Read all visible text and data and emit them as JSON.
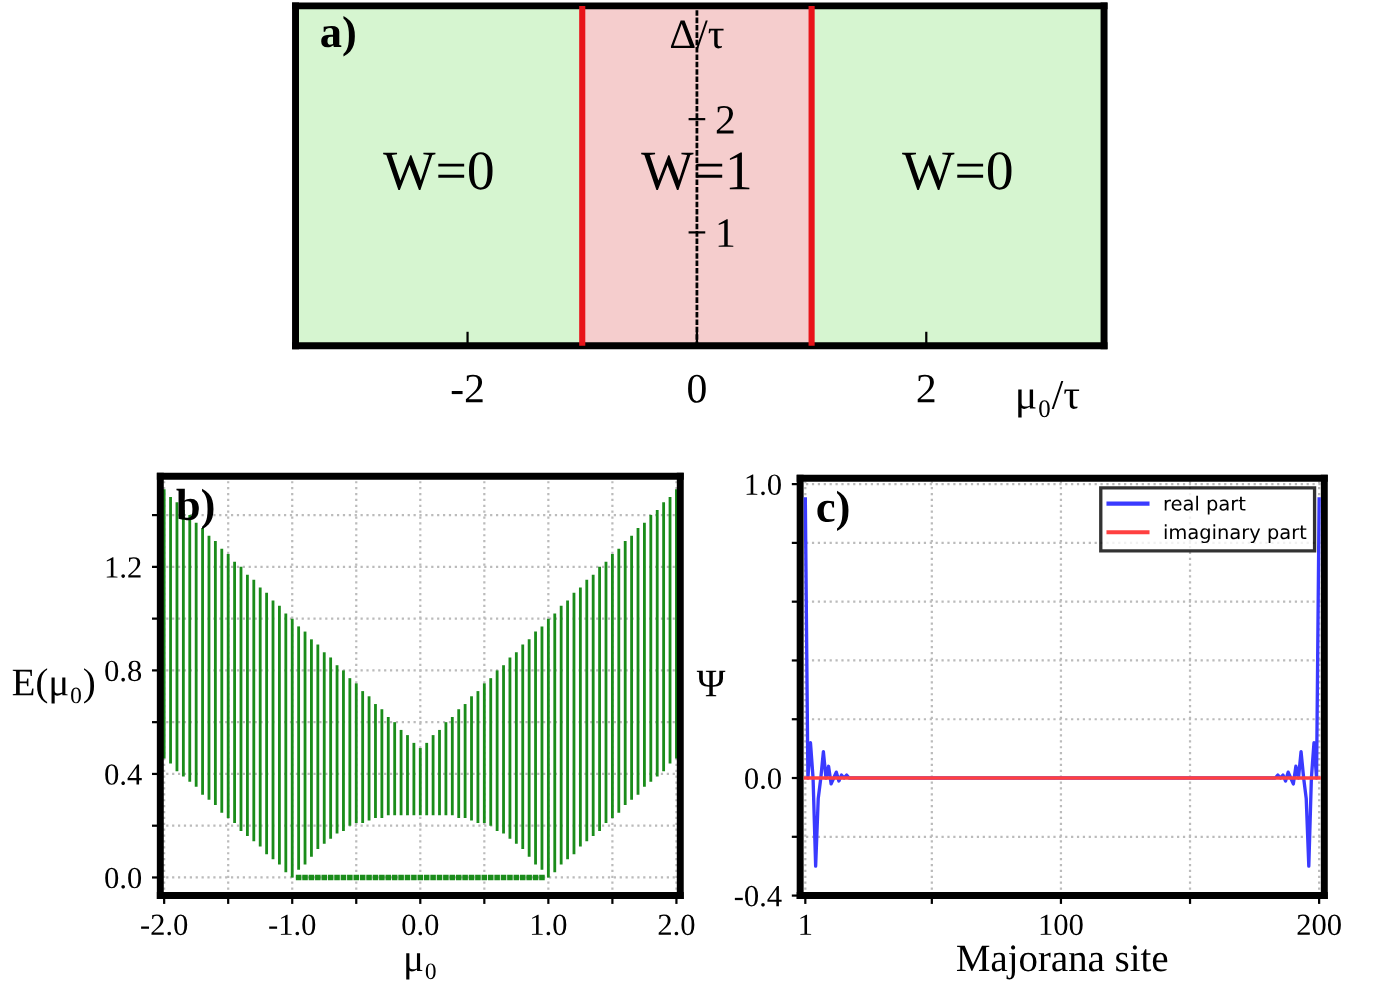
{
  "chart_data": [
    {
      "type": "line",
      "title": "a)",
      "xlabel": "μ₀/τ",
      "ylabel": "Δ/τ",
      "xlim": [
        -3.5,
        3.55
      ],
      "ylim": [
        0,
        3.0
      ],
      "xticks": [
        -2,
        0,
        2
      ],
      "yticks": [
        1,
        2
      ],
      "bands": [
        {
          "axis": "x",
          "from": -3.5,
          "to": -1,
          "label": "W=0",
          "color": "#d6f5d0"
        },
        {
          "axis": "x",
          "from": -1,
          "to": 1,
          "label": "W=1",
          "color": "#f5cdcd"
        },
        {
          "axis": "x",
          "from": 1,
          "to": 3.55,
          "label": "W=0",
          "color": "#d6f5d0"
        }
      ],
      "ref_lines": [
        {
          "axis": "x",
          "value": -1,
          "color": "#e8141a"
        },
        {
          "axis": "x",
          "value": 1,
          "color": "#e8141a"
        }
      ]
    },
    {
      "type": "bar",
      "title": "b)",
      "xlabel": "μ₀",
      "ylabel": "E(μ₀)",
      "xlim": [
        -2.03,
        2.03
      ],
      "ylim": [
        -0.07,
        1.55
      ],
      "grid": true,
      "xticks": [
        {
          "value": -2,
          "label": "-2.0"
        },
        {
          "value": -1.5,
          "label": null
        },
        {
          "value": -1,
          "label": "-1.0"
        },
        {
          "value": -0.5,
          "label": null
        },
        {
          "value": 0,
          "label": "0.0"
        },
        {
          "value": 0.5,
          "label": null
        },
        {
          "value": 1,
          "label": "1.0"
        },
        {
          "value": 1.5,
          "label": null
        },
        {
          "value": 2,
          "label": "2.0"
        }
      ],
      "yticks": [
        {
          "value": 0,
          "label": "0.0"
        },
        {
          "value": 0.2,
          "label": null
        },
        {
          "value": 0.4,
          "label": "0.4"
        },
        {
          "value": 0.6,
          "label": null
        },
        {
          "value": 0.8,
          "label": "0.8"
        },
        {
          "value": 1.0,
          "label": null
        },
        {
          "value": 1.2,
          "label": "1.2"
        },
        {
          "value": 1.4,
          "label": null
        }
      ],
      "series": [
        {
          "type": "bar",
          "color": "#1a8c1a",
          "x": [
            -2,
            -1.95,
            -1.9,
            -1.85,
            -1.8,
            -1.75,
            -1.7,
            -1.65,
            -1.6,
            -1.55,
            -1.5,
            -1.45,
            -1.4,
            -1.35,
            -1.3,
            -1.25,
            -1.2,
            -1.15,
            -1.1,
            -1.05,
            -1,
            -0.95,
            -0.9,
            -0.85,
            -0.8,
            -0.75,
            -0.7,
            -0.65,
            -0.6,
            -0.55,
            -0.5,
            -0.45,
            -0.4,
            -0.35,
            -0.3,
            -0.25,
            -0.2,
            -0.15,
            -0.1,
            -0.05,
            0,
            0.05,
            0.1,
            0.15,
            0.2,
            0.25,
            0.3,
            0.35,
            0.4,
            0.45,
            0.5,
            0.55,
            0.6,
            0.65,
            0.7,
            0.75,
            0.8,
            0.85,
            0.9,
            0.95,
            1,
            1.05,
            1.1,
            1.15,
            1.2,
            1.25,
            1.3,
            1.35,
            1.4,
            1.45,
            1.5,
            1.55,
            1.6,
            1.65,
            1.7,
            1.75,
            1.8,
            1.85,
            1.9,
            1.95,
            2
          ],
          "base": [
            0.46,
            0.44,
            0.41,
            0.39,
            0.37,
            0.35,
            0.32,
            0.3,
            0.28,
            0.25,
            0.23,
            0.21,
            0.18,
            0.16,
            0.14,
            0.12,
            0.09,
            0.07,
            0.05,
            0.02,
            0,
            0.03,
            0.05,
            0.08,
            0.11,
            0.13,
            0.15,
            0.17,
            0.18,
            0.2,
            0.21,
            0.21,
            0.22,
            0.23,
            0.23,
            0.24,
            0.24,
            0.24,
            0.24,
            0.24,
            0.24,
            0.24,
            0.24,
            0.24,
            0.24,
            0.24,
            0.23,
            0.23,
            0.22,
            0.21,
            0.21,
            0.2,
            0.18,
            0.17,
            0.15,
            0.13,
            0.11,
            0.08,
            0.05,
            0.03,
            0,
            0.02,
            0.05,
            0.07,
            0.09,
            0.12,
            0.14,
            0.16,
            0.18,
            0.21,
            0.23,
            0.25,
            0.28,
            0.3,
            0.32,
            0.35,
            0.37,
            0.39,
            0.41,
            0.44,
            0.46
          ],
          "values": [
            1.04,
            1.03,
            1.04,
            1.03,
            1.03,
            1.02,
            1.03,
            1.02,
            1.02,
            1.02,
            1.02,
            1.01,
            1.02,
            1.01,
            1.01,
            1.0,
            1.01,
            1.0,
            1.0,
            1.0,
            1.0,
            0.94,
            0.9,
            0.84,
            0.79,
            0.74,
            0.7,
            0.65,
            0.62,
            0.57,
            0.54,
            0.51,
            0.48,
            0.44,
            0.42,
            0.38,
            0.36,
            0.33,
            0.31,
            0.28,
            0.26,
            0.28,
            0.31,
            0.33,
            0.36,
            0.38,
            0.42,
            0.44,
            0.48,
            0.51,
            0.54,
            0.57,
            0.62,
            0.65,
            0.7,
            0.74,
            0.79,
            0.84,
            0.9,
            0.94,
            1.0,
            1.0,
            1.0,
            1.0,
            1.01,
            1.0,
            1.01,
            1.01,
            1.02,
            1.01,
            1.02,
            1.02,
            1.02,
            1.02,
            1.03,
            1.02,
            1.03,
            1.03,
            1.04,
            1.03,
            1.04
          ]
        },
        {
          "type": "scatter",
          "color": "#1a8c1a",
          "marker": "square",
          "x": [
            -0.95,
            -0.9,
            -0.85,
            -0.8,
            -0.75,
            -0.7,
            -0.65,
            -0.6,
            -0.55,
            -0.5,
            -0.45,
            -0.4,
            -0.35,
            -0.3,
            -0.25,
            -0.2,
            -0.15,
            -0.1,
            -0.05,
            0,
            0.05,
            0.1,
            0.15,
            0.2,
            0.25,
            0.3,
            0.35,
            0.4,
            0.45,
            0.5,
            0.55,
            0.6,
            0.65,
            0.7,
            0.75,
            0.8,
            0.85,
            0.9,
            0.95
          ],
          "values": [
            0,
            0,
            0,
            0,
            0,
            0,
            0,
            0,
            0,
            0,
            0,
            0,
            0,
            0,
            0,
            0,
            0,
            0,
            0,
            0,
            0,
            0,
            0,
            0,
            0,
            0,
            0,
            0,
            0,
            0,
            0,
            0,
            0,
            0,
            0,
            0,
            0,
            0,
            0
          ]
        }
      ]
    },
    {
      "type": "line",
      "title": "c)",
      "xlabel": "Majorana site",
      "ylabel": "Ψ",
      "xlim": [
        -1,
        202
      ],
      "ylim": [
        -0.4,
        1.02
      ],
      "grid": true,
      "legend": "top right",
      "line_style": "solid",
      "xticks": [
        1,
        {
          "value": 50,
          "label": null
        },
        100,
        {
          "value": 150,
          "label": null
        },
        200
      ],
      "yticks": [
        {
          "value": -0.4,
          "label": "-0.4"
        },
        {
          "value": -0.2,
          "label": null
        },
        {
          "value": 0,
          "label": "0.0"
        },
        {
          "value": 0.2,
          "label": null
        },
        {
          "value": 0.4,
          "label": null
        },
        {
          "value": 0.6,
          "label": null
        },
        {
          "value": 0.8,
          "label": null
        },
        {
          "value": 1.0,
          "label": "1.0"
        }
      ],
      "series": [
        {
          "name": "real part",
          "color": "#3a3aff",
          "x": [
            1,
            2,
            3,
            4,
            5,
            6,
            7,
            8,
            9,
            10,
            11,
            12,
            13,
            14,
            15,
            16,
            17,
            18,
            19,
            20,
            181,
            182,
            183,
            184,
            185,
            186,
            187,
            188,
            189,
            190,
            191,
            192,
            193,
            194,
            195,
            196,
            197,
            198,
            199,
            200
          ],
          "values": [
            0.95,
            0,
            0.12,
            0,
            -0.3,
            -0.07,
            0,
            0.09,
            0,
            0.04,
            -0.02,
            0,
            0.02,
            -0.01,
            0.01,
            0,
            0.01,
            0,
            0,
            0,
            0,
            0,
            0,
            0.01,
            0,
            0.01,
            -0.01,
            0.02,
            0,
            -0.02,
            0.04,
            0,
            0.09,
            0,
            -0.07,
            -0.3,
            0,
            0.12,
            0,
            0.95
          ]
        },
        {
          "name": "imaginary part",
          "color": "#ff4040",
          "x": [
            1,
            200
          ],
          "values": [
            0,
            0
          ]
        }
      ]
    }
  ]
}
